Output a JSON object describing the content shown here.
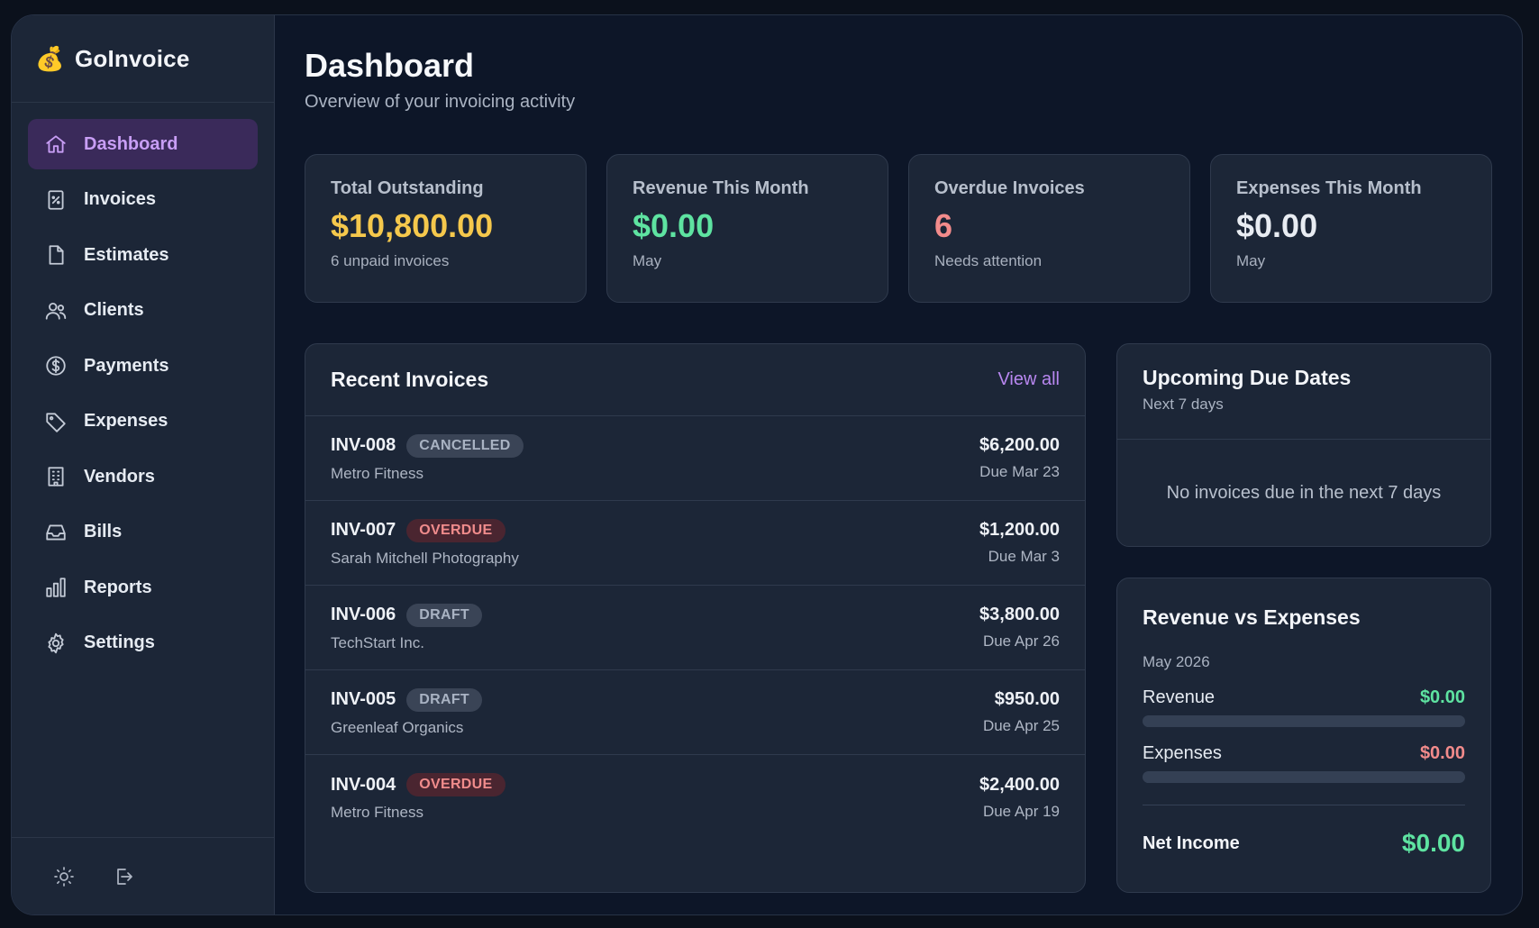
{
  "brand": {
    "icon": "money-bag-icon",
    "glyph": "💰",
    "name": "GoInvoice"
  },
  "nav": [
    {
      "label": "Dashboard",
      "icon": "home-icon",
      "active": true
    },
    {
      "label": "Invoices",
      "icon": "invoice-icon"
    },
    {
      "label": "Estimates",
      "icon": "document-icon"
    },
    {
      "label": "Clients",
      "icon": "users-icon"
    },
    {
      "label": "Payments",
      "icon": "dollar-circle-icon"
    },
    {
      "label": "Expenses",
      "icon": "tag-icon"
    },
    {
      "label": "Vendors",
      "icon": "building-icon"
    },
    {
      "label": "Bills",
      "icon": "inbox-icon"
    },
    {
      "label": "Reports",
      "icon": "bar-chart-icon"
    },
    {
      "label": "Settings",
      "icon": "gear-icon"
    }
  ],
  "footer": {
    "theme_icon": "sun-icon",
    "logout_icon": "logout-icon"
  },
  "header": {
    "title": "Dashboard",
    "subtitle": "Overview of your invoicing activity"
  },
  "stats": [
    {
      "label": "Total Outstanding",
      "value": "$10,800.00",
      "note": "6 unpaid invoices",
      "color": "#f5c84c"
    },
    {
      "label": "Revenue This Month",
      "value": "$0.00",
      "note": "May",
      "color": "#5ee3a1"
    },
    {
      "label": "Overdue Invoices",
      "value": "6",
      "note": "Needs attention",
      "color": "#f28b8b"
    },
    {
      "label": "Expenses This Month",
      "value": "$0.00",
      "note": "May",
      "color": "#e8ecf2"
    }
  ],
  "recent_invoices": {
    "title": "Recent Invoices",
    "view_all": "View all",
    "rows": [
      {
        "number": "INV-008",
        "status": "CANCELLED",
        "status_type": "cancelled",
        "client": "Metro Fitness",
        "amount": "$6,200.00",
        "due": "Due Mar 23"
      },
      {
        "number": "INV-007",
        "status": "OVERDUE",
        "status_type": "overdue",
        "client": "Sarah Mitchell Photography",
        "amount": "$1,200.00",
        "due": "Due Mar 3"
      },
      {
        "number": "INV-006",
        "status": "DRAFT",
        "status_type": "draft",
        "client": "TechStart Inc.",
        "amount": "$3,800.00",
        "due": "Due Apr 26"
      },
      {
        "number": "INV-005",
        "status": "DRAFT",
        "status_type": "draft",
        "client": "Greenleaf Organics",
        "amount": "$950.00",
        "due": "Due Apr 25"
      },
      {
        "number": "INV-004",
        "status": "OVERDUE",
        "status_type": "overdue",
        "client": "Metro Fitness",
        "amount": "$2,400.00",
        "due": "Due Apr 19"
      }
    ]
  },
  "upcoming": {
    "title": "Upcoming Due Dates",
    "subtitle": "Next 7 days",
    "empty": "No invoices due in the next 7 days"
  },
  "revenue_vs_expenses": {
    "title": "Revenue vs Expenses",
    "period": "May 2026",
    "revenue_label": "Revenue",
    "revenue_value": "$0.00",
    "revenue_fraction": 0,
    "revenue_color": "#5ee3a1",
    "expenses_label": "Expenses",
    "expenses_value": "$0.00",
    "expenses_fraction": 0,
    "expenses_color": "#f28b8b",
    "net_label": "Net Income",
    "net_value": "$0.00",
    "net_color": "#5ee3a1"
  }
}
